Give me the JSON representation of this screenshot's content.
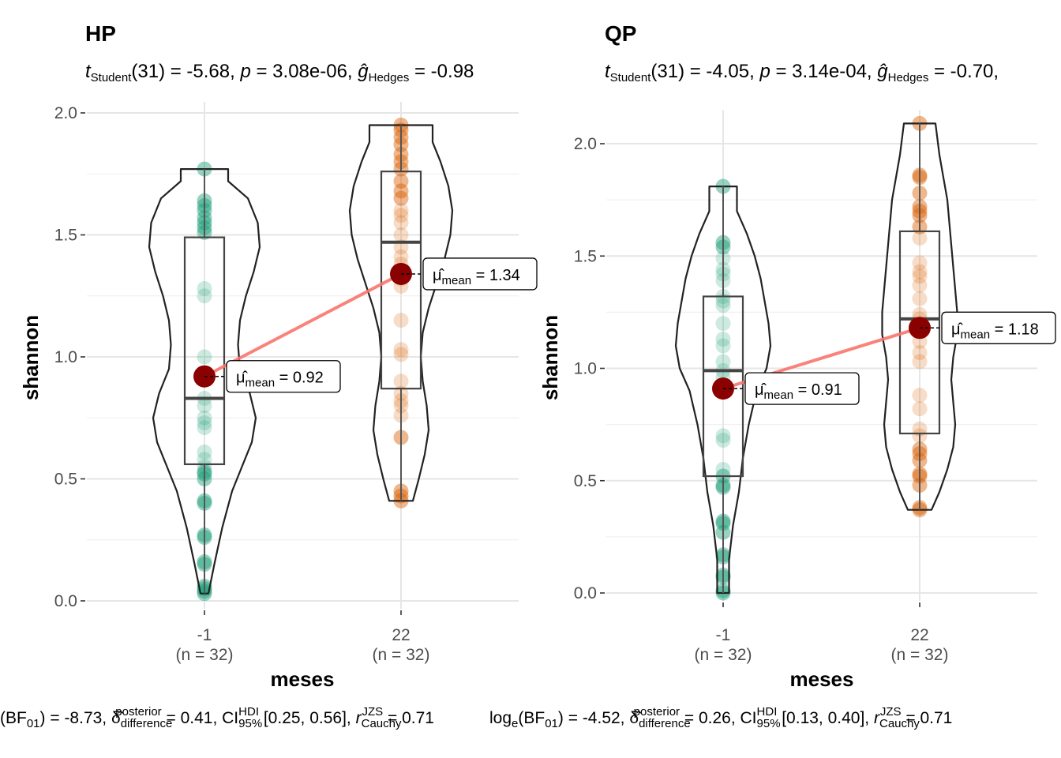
{
  "chart_data": [
    {
      "type": "violin",
      "title": "HP",
      "subtitle": {
        "t_df": "31",
        "t_value": "-5.68",
        "p_value": "3.08e-06",
        "g_value": "-0.98"
      },
      "xlabel": "meses",
      "ylabel": "shannon",
      "ylim": [
        0,
        2.0
      ],
      "yticks": [
        "0.0",
        "0.5",
        "1.0",
        "1.5",
        "2.0"
      ],
      "categories": [
        "-1",
        "22"
      ],
      "n_labels": [
        "(n = 32)",
        "(n = 32)"
      ],
      "colors": [
        "#1b9e77",
        "#d95f02"
      ],
      "means": [
        0.92,
        1.34
      ],
      "mean_labels": [
        "0.92",
        "1.34"
      ],
      "boxes": [
        {
          "q1": 0.56,
          "median": 0.83,
          "q3": 1.49,
          "min": 0.03,
          "max": 1.77
        },
        {
          "q1": 0.87,
          "median": 1.47,
          "q3": 1.76,
          "min": 0.41,
          "max": 1.95
        }
      ],
      "points": [
        [
          1.77,
          1.64,
          1.62,
          1.6,
          1.57,
          1.55,
          1.53,
          1.51,
          1.28,
          1.25,
          1.0,
          0.83,
          0.8,
          0.75,
          0.73,
          0.71,
          0.61,
          0.58,
          0.55,
          0.53,
          0.52,
          0.5,
          0.41,
          0.4,
          0.27,
          0.26,
          0.16,
          0.15,
          0.06,
          0.05,
          0.04,
          0.03
        ],
        [
          1.95,
          1.93,
          1.9,
          1.87,
          1.83,
          1.8,
          1.77,
          1.72,
          1.68,
          1.65,
          1.6,
          1.58,
          1.55,
          1.5,
          1.45,
          1.41,
          1.38,
          1.35,
          1.32,
          1.29,
          1.15,
          1.03,
          1.01,
          0.9,
          0.85,
          0.82,
          0.8,
          0.76,
          0.67,
          0.45,
          0.43,
          0.41
        ]
      ],
      "violins": [
        [
          [
            0.03,
            0.02
          ],
          [
            0.15,
            0.05
          ],
          [
            0.3,
            0.09
          ],
          [
            0.45,
            0.14
          ],
          [
            0.55,
            0.19
          ],
          [
            0.65,
            0.24
          ],
          [
            0.75,
            0.26
          ],
          [
            0.85,
            0.23
          ],
          [
            0.95,
            0.18
          ],
          [
            1.05,
            0.17
          ],
          [
            1.15,
            0.18
          ],
          [
            1.25,
            0.21
          ],
          [
            1.35,
            0.25
          ],
          [
            1.45,
            0.28
          ],
          [
            1.55,
            0.27
          ],
          [
            1.65,
            0.22
          ],
          [
            1.72,
            0.12
          ],
          [
            1.77,
            0.12
          ]
        ],
        [
          [
            0.41,
            0.06
          ],
          [
            0.5,
            0.09
          ],
          [
            0.6,
            0.12
          ],
          [
            0.7,
            0.14
          ],
          [
            0.8,
            0.13
          ],
          [
            0.9,
            0.11
          ],
          [
            1.0,
            0.1
          ],
          [
            1.1,
            0.11
          ],
          [
            1.2,
            0.14
          ],
          [
            1.3,
            0.18
          ],
          [
            1.4,
            0.22
          ],
          [
            1.5,
            0.25
          ],
          [
            1.6,
            0.26
          ],
          [
            1.7,
            0.24
          ],
          [
            1.8,
            0.2
          ],
          [
            1.88,
            0.16
          ],
          [
            1.95,
            0.16
          ]
        ]
      ],
      "caption": {
        "bf": "-8.73",
        "delta": "0.41",
        "ci": "[0.25, 0.56]",
        "r": "0.71"
      }
    },
    {
      "type": "violin",
      "title": "QP",
      "subtitle": {
        "t_df": "31",
        "t_value": "-4.05",
        "p_value": "3.14e-04",
        "g_value": "-0.70,"
      },
      "xlabel": "meses",
      "ylabel": "shannon",
      "ylim": [
        0,
        2.1
      ],
      "yticks": [
        "0.0",
        "0.5",
        "1.0",
        "1.5",
        "2.0"
      ],
      "categories": [
        "-1",
        "22"
      ],
      "n_labels": [
        "(n = 32)",
        "(n = 32)"
      ],
      "colors": [
        "#1b9e77",
        "#d95f02"
      ],
      "means": [
        0.91,
        1.18
      ],
      "mean_labels": [
        "0.91",
        "1.18"
      ],
      "boxes": [
        {
          "q1": 0.52,
          "median": 0.99,
          "q3": 1.32,
          "min": 0.0,
          "max": 1.81
        },
        {
          "q1": 0.71,
          "median": 1.22,
          "q3": 1.61,
          "min": 0.37,
          "max": 2.09
        }
      ],
      "points": [
        [
          1.81,
          1.56,
          1.54,
          1.49,
          1.44,
          1.42,
          1.39,
          1.32,
          1.3,
          1.28,
          1.2,
          1.13,
          1.1,
          1.03,
          0.99,
          0.96,
          0.9,
          0.7,
          0.68,
          0.55,
          0.52,
          0.48,
          0.47,
          0.32,
          0.31,
          0.27,
          0.17,
          0.16,
          0.08,
          0.07,
          0.01,
          0.0
        ],
        [
          2.09,
          1.86,
          1.85,
          1.78,
          1.72,
          1.7,
          1.68,
          1.63,
          1.58,
          1.47,
          1.43,
          1.41,
          1.37,
          1.31,
          1.24,
          1.22,
          1.19,
          1.12,
          1.07,
          1.03,
          0.88,
          0.82,
          0.73,
          0.7,
          0.64,
          0.62,
          0.59,
          0.53,
          0.52,
          0.48,
          0.38,
          0.37
        ]
      ],
      "violins": [
        [
          [
            0.0,
            0.03
          ],
          [
            0.15,
            0.03
          ],
          [
            0.3,
            0.05
          ],
          [
            0.45,
            0.08
          ],
          [
            0.6,
            0.1
          ],
          [
            0.75,
            0.13
          ],
          [
            0.9,
            0.17
          ],
          [
            1.0,
            0.22
          ],
          [
            1.1,
            0.24
          ],
          [
            1.2,
            0.23
          ],
          [
            1.3,
            0.21
          ],
          [
            1.4,
            0.19
          ],
          [
            1.5,
            0.16
          ],
          [
            1.6,
            0.12
          ],
          [
            1.7,
            0.07
          ],
          [
            1.81,
            0.07
          ]
        ],
        [
          [
            0.37,
            0.06
          ],
          [
            0.45,
            0.1
          ],
          [
            0.55,
            0.14
          ],
          [
            0.65,
            0.17
          ],
          [
            0.75,
            0.18
          ],
          [
            0.85,
            0.17
          ],
          [
            0.95,
            0.16
          ],
          [
            1.05,
            0.17
          ],
          [
            1.15,
            0.19
          ],
          [
            1.25,
            0.19
          ],
          [
            1.35,
            0.18
          ],
          [
            1.45,
            0.17
          ],
          [
            1.55,
            0.16
          ],
          [
            1.65,
            0.15
          ],
          [
            1.75,
            0.14
          ],
          [
            1.85,
            0.12
          ],
          [
            1.95,
            0.1
          ],
          [
            2.09,
            0.08
          ]
        ]
      ],
      "caption": {
        "bf": "-4.52",
        "delta": "0.26",
        "ci": "[0.13, 0.40]",
        "r": "0.71"
      }
    }
  ]
}
